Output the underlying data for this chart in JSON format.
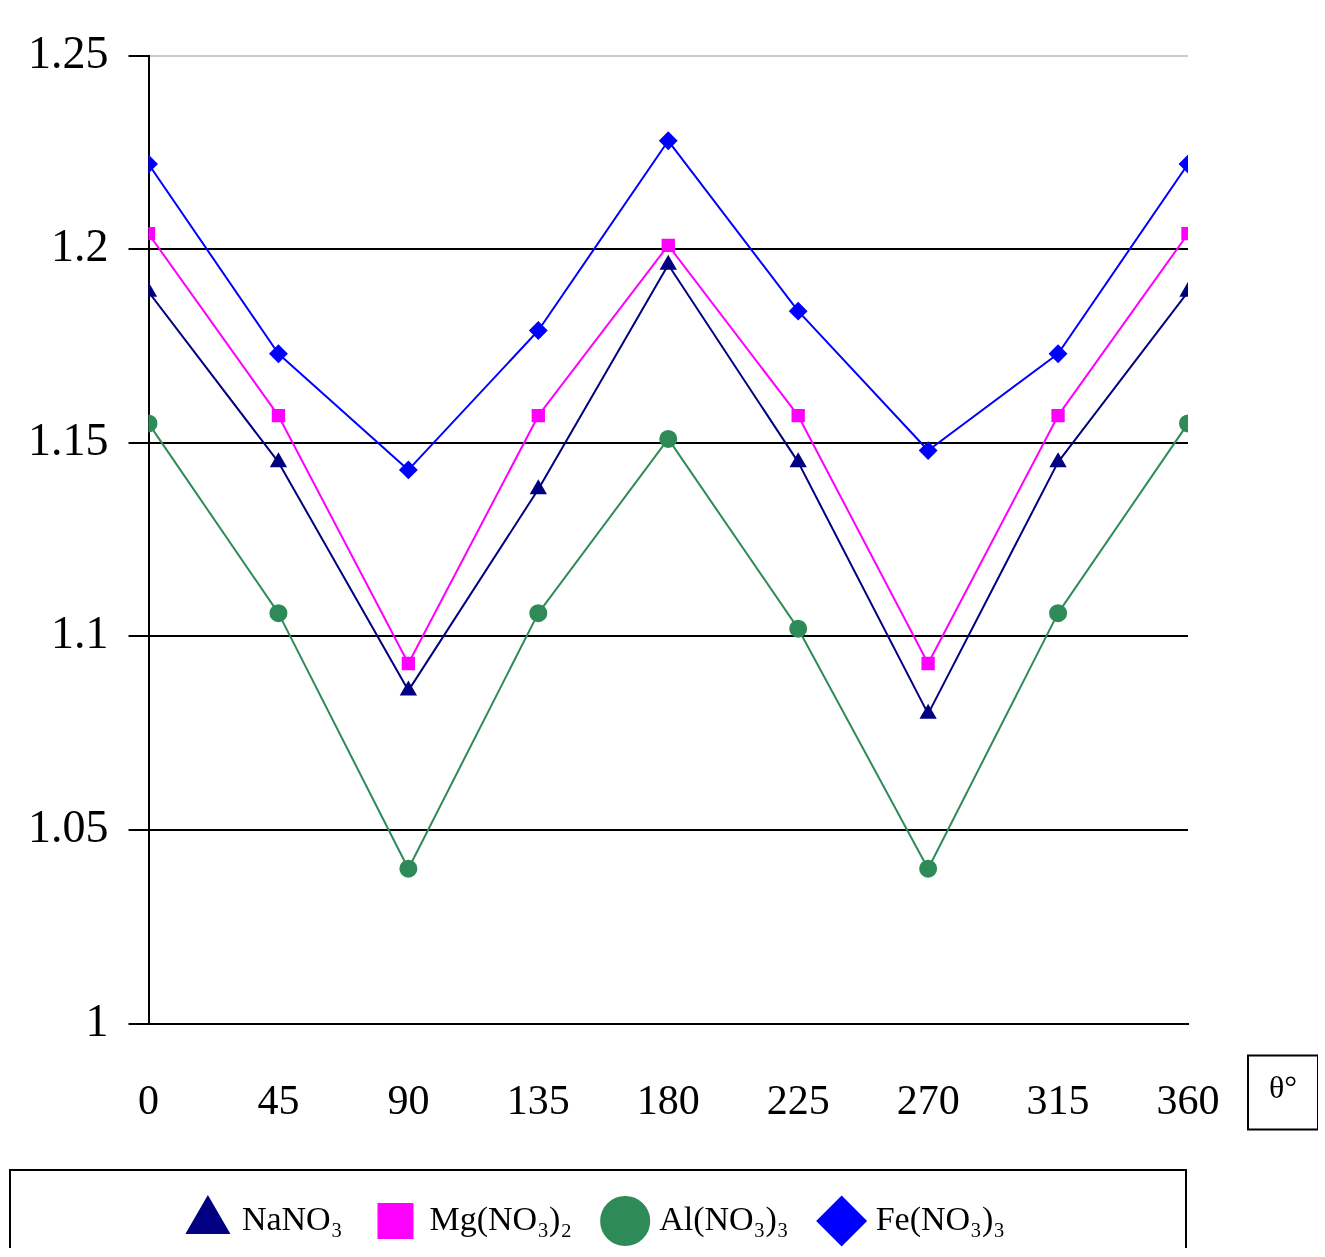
{
  "chart_data": {
    "type": "line",
    "xlabel": "θ°",
    "x": [
      0,
      45,
      90,
      135,
      180,
      225,
      270,
      315,
      360
    ],
    "xlim": [
      0,
      360
    ],
    "xticks": [
      0,
      45,
      90,
      135,
      180,
      225,
      270,
      315,
      360
    ],
    "ylim": [
      1,
      1.25
    ],
    "yticks": [
      1,
      1.05,
      1.1,
      1.15,
      1.2,
      1.25
    ],
    "grid": "y",
    "legend": "bottom",
    "line_style": "solid",
    "series": [
      {
        "name": "NaNO₃",
        "color": "#000080",
        "marker": "triangle",
        "values": [
          1.189,
          1.145,
          1.086,
          1.138,
          1.196,
          1.145,
          1.08,
          1.145,
          1.189
        ]
      },
      {
        "name": "Mg(NO₃)₂",
        "color": "#ff00ff",
        "marker": "square",
        "values": [
          1.204,
          1.157,
          1.093,
          1.157,
          1.201,
          1.157,
          1.093,
          1.157,
          1.204
        ]
      },
      {
        "name": "Al(NO₃)₃",
        "color": "#2e8b57",
        "marker": "circle",
        "values": [
          1.155,
          1.106,
          1.04,
          1.106,
          1.151,
          1.102,
          1.04,
          1.106,
          1.155
        ]
      },
      {
        "name": "Fe(NO₃)₃",
        "color": "#0000ff",
        "marker": "diamond",
        "values": [
          1.222,
          1.173,
          1.143,
          1.179,
          1.228,
          1.184,
          1.148,
          1.173,
          1.222
        ]
      }
    ]
  }
}
